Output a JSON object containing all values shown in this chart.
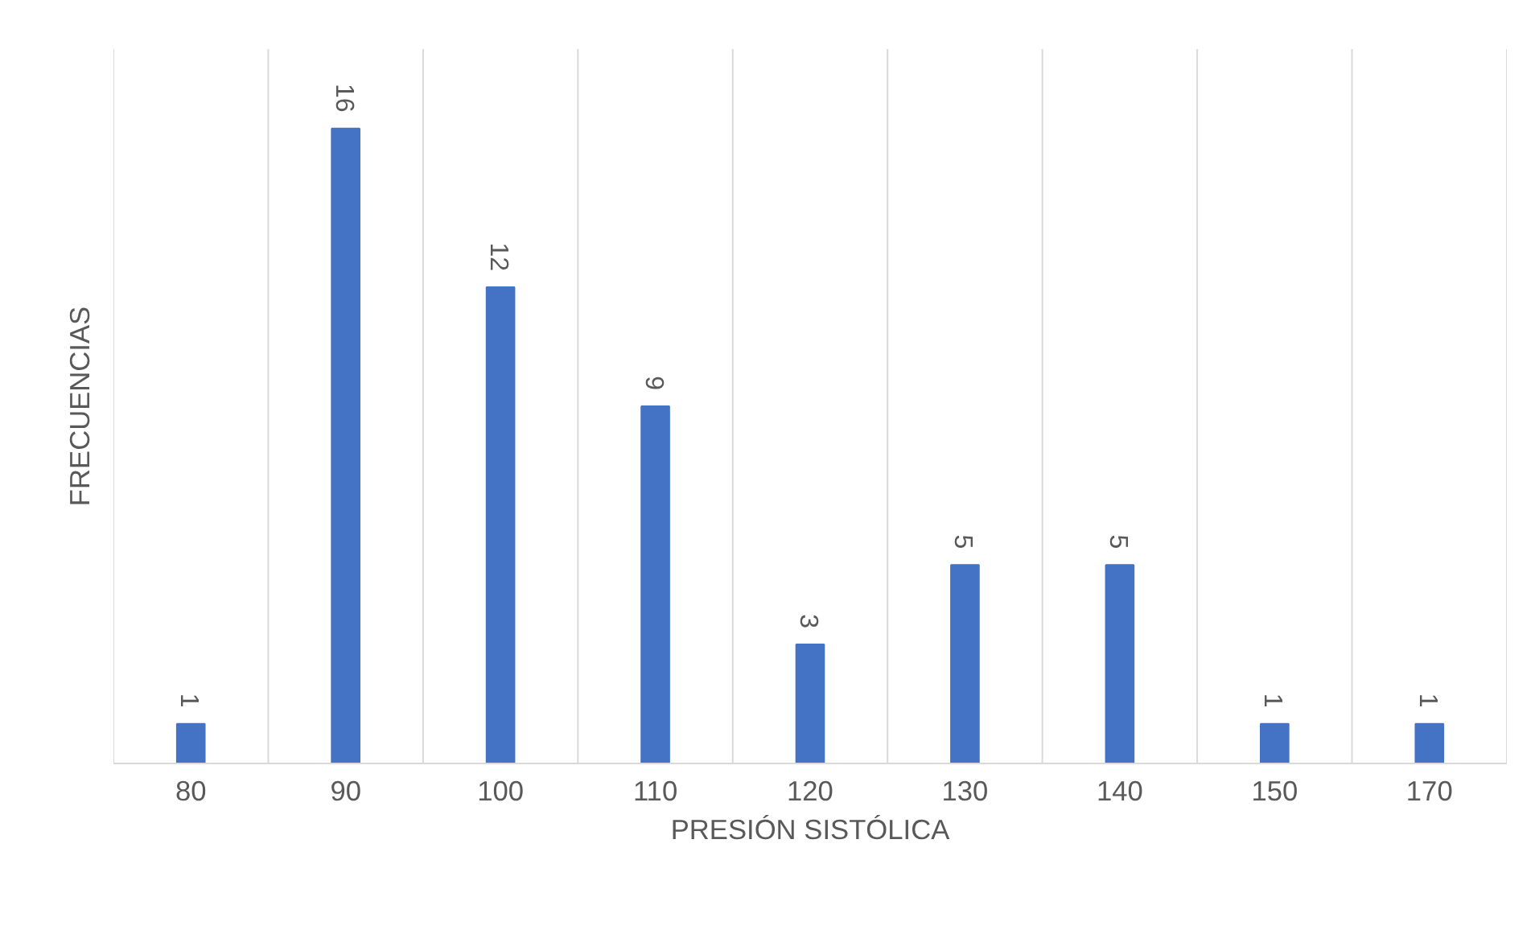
{
  "chart_data": {
    "type": "bar",
    "xlabel": "PRESIÓN SISTÓLICA",
    "ylabel": "FRECUENCIAS",
    "categories": [
      "80",
      "90",
      "100",
      "110",
      "120",
      "130",
      "140",
      "150",
      "170"
    ],
    "values": [
      1,
      16,
      12,
      9,
      3,
      5,
      5,
      1,
      1
    ],
    "color": "#4472c4",
    "ylim": [
      0,
      18
    ],
    "grid": "x",
    "data_labels": true,
    "tick_labels": "x"
  }
}
